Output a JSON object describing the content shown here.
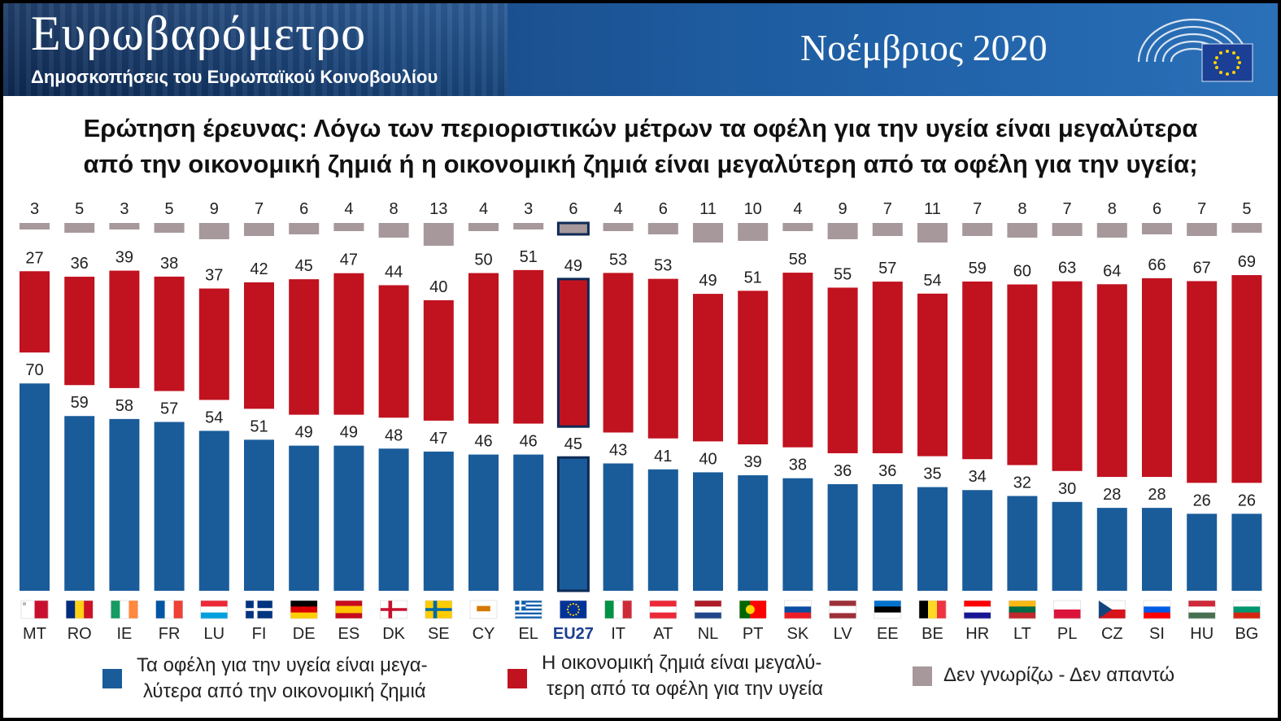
{
  "header": {
    "brand": "Ευρωβαρόμετρο",
    "subtitle": "Δημοσκοπήσεις του Ευρωπαϊκού Κοινοβουλίου",
    "date": "Νοέμβριος 2020"
  },
  "question": {
    "line1": "Ερώτηση έρευνας: Λόγω των περιοριστικών μέτρων τα οφέλη για την υγεία είναι μεγαλύτερα",
    "line2": "από την οικονομική ζημιά ή η οικονομική ζημιά είναι μεγαλύτερη από τα οφέλη για την υγεία;"
  },
  "legend": {
    "blue_line1": "Τα οφέλη για την υγεία είναι μεγα-",
    "blue_line2": "λύτερα από την οικονομική ζημιά",
    "red_line1": "Η οικονομική ζημιά είναι μεγαλύ-",
    "red_line2": "τερη από τα οφέλη για την υγεία",
    "grey": "Δεν γνωρίζω - Δεν απαντώ"
  },
  "colors": {
    "blue": "#1a5c9a",
    "red": "#c1121f",
    "grey": "#a6989b",
    "highlight_border": "#0e2a55"
  },
  "chart_data": {
    "type": "bar",
    "highlight": "EU27",
    "categories": [
      "MT",
      "RO",
      "IE",
      "FR",
      "LU",
      "FI",
      "DE",
      "ES",
      "DK",
      "SE",
      "CY",
      "EL",
      "EU27",
      "IT",
      "AT",
      "NL",
      "PT",
      "SK",
      "LV",
      "EE",
      "BE",
      "HR",
      "LT",
      "PL",
      "CZ",
      "SI",
      "HU",
      "BG"
    ],
    "series": [
      {
        "name": "Τα οφέλη για την υγεία είναι μεγαλύτερα από την οικονομική ζημιά",
        "color": "#1a5c9a",
        "values": [
          70,
          59,
          58,
          57,
          54,
          51,
          49,
          49,
          48,
          47,
          46,
          46,
          45,
          43,
          41,
          40,
          39,
          38,
          36,
          36,
          35,
          34,
          32,
          30,
          28,
          28,
          26,
          26
        ]
      },
      {
        "name": "Η οικονομική ζημιά είναι μεγαλύτερη από τα οφέλη για την υγεία",
        "color": "#c1121f",
        "values": [
          27,
          36,
          39,
          38,
          37,
          42,
          45,
          47,
          44,
          40,
          50,
          51,
          49,
          53,
          53,
          49,
          51,
          58,
          55,
          57,
          54,
          59,
          60,
          63,
          64,
          66,
          67,
          69
        ]
      },
      {
        "name": "Δεν γνωρίζω - Δεν απαντώ",
        "color": "#a6989b",
        "values": [
          3,
          5,
          3,
          5,
          9,
          7,
          6,
          4,
          8,
          13,
          4,
          3,
          6,
          4,
          6,
          11,
          10,
          4,
          9,
          7,
          11,
          7,
          8,
          7,
          8,
          6,
          7,
          5
        ]
      }
    ]
  }
}
